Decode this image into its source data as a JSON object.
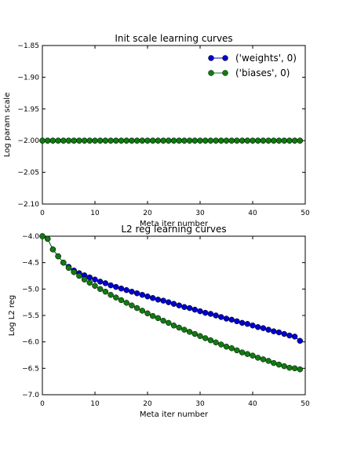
{
  "chart_data": [
    {
      "type": "line",
      "title": "Init scale learning curves",
      "xlabel": "Meta iter number",
      "ylabel": "Log param scale",
      "xlim": [
        0,
        50
      ],
      "ylim": [
        -2.1,
        -1.85
      ],
      "xticks": [
        "0",
        "10",
        "20",
        "30",
        "40",
        "50"
      ],
      "yticks": [
        "-1.85",
        "-1.90",
        "-1.95",
        "-2.00",
        "-2.05",
        "-2.10"
      ],
      "grid": false,
      "legend_position": "top-right",
      "x": [
        0,
        1,
        2,
        3,
        4,
        5,
        6,
        7,
        8,
        9,
        10,
        11,
        12,
        13,
        14,
        15,
        16,
        17,
        18,
        19,
        20,
        21,
        22,
        23,
        24,
        25,
        26,
        27,
        28,
        29,
        30,
        31,
        32,
        33,
        34,
        35,
        36,
        37,
        38,
        39,
        40,
        41,
        42,
        43,
        44,
        45,
        46,
        47,
        48,
        49
      ],
      "series": [
        {
          "name": "('weights', 0)",
          "color": "#0000cc",
          "values": [
            -2,
            -2,
            -2,
            -2,
            -2,
            -2,
            -2,
            -2,
            -2,
            -2,
            -2,
            -2,
            -2,
            -2,
            -2,
            -2,
            -2,
            -2,
            -2,
            -2,
            -2,
            -2,
            -2,
            -2,
            -2,
            -2,
            -2,
            -2,
            -2,
            -2,
            -2,
            -2,
            -2,
            -2,
            -2,
            -2,
            -2,
            -2,
            -2,
            -2,
            -2,
            -2,
            -2,
            -2,
            -2,
            -2,
            -2,
            -2,
            -2,
            -2
          ]
        },
        {
          "name": "('biases', 0)",
          "color": "#117a11",
          "values": [
            -2,
            -2,
            -2,
            -2,
            -2,
            -2,
            -2,
            -2,
            -2,
            -2,
            -2,
            -2,
            -2,
            -2,
            -2,
            -2,
            -2,
            -2,
            -2,
            -2,
            -2,
            -2,
            -2,
            -2,
            -2,
            -2,
            -2,
            -2,
            -2,
            -2,
            -2,
            -2,
            -2,
            -2,
            -2,
            -2,
            -2,
            -2,
            -2,
            -2,
            -2,
            -2,
            -2,
            -2,
            -2,
            -2,
            -2,
            -2,
            -2,
            -2
          ]
        }
      ]
    },
    {
      "type": "line",
      "title": "L2 reg learning curves",
      "xlabel": "Meta iter number",
      "ylabel": "Log L2 reg",
      "xlim": [
        0,
        50
      ],
      "ylim": [
        -7.0,
        -4.0
      ],
      "xticks": [
        "0",
        "10",
        "20",
        "30",
        "40",
        "50"
      ],
      "yticks": [
        "-4.0",
        "-4.5",
        "-5.0",
        "-5.5",
        "-6.0",
        "-6.5",
        "-7.0"
      ],
      "grid": false,
      "x": [
        0,
        1,
        2,
        3,
        4,
        5,
        6,
        7,
        8,
        9,
        10,
        11,
        12,
        13,
        14,
        15,
        16,
        17,
        18,
        19,
        20,
        21,
        22,
        23,
        24,
        25,
        26,
        27,
        28,
        29,
        30,
        31,
        32,
        33,
        34,
        35,
        36,
        37,
        38,
        39,
        40,
        41,
        42,
        43,
        44,
        45,
        46,
        47,
        48,
        49
      ],
      "series": [
        {
          "color": "#0000cc",
          "values": [
            -4.0,
            -4.05,
            -4.25,
            -4.38,
            -4.5,
            -4.58,
            -4.65,
            -4.7,
            -4.74,
            -4.78,
            -4.82,
            -4.86,
            -4.89,
            -4.93,
            -4.96,
            -4.99,
            -5.02,
            -5.05,
            -5.08,
            -5.11,
            -5.14,
            -5.17,
            -5.2,
            -5.22,
            -5.25,
            -5.28,
            -5.31,
            -5.34,
            -5.36,
            -5.39,
            -5.42,
            -5.45,
            -5.47,
            -5.5,
            -5.53,
            -5.56,
            -5.58,
            -5.61,
            -5.64,
            -5.66,
            -5.69,
            -5.72,
            -5.74,
            -5.77,
            -5.8,
            -5.82,
            -5.85,
            -5.88,
            -5.9,
            -5.98
          ]
        },
        {
          "color": "#117a11",
          "values": [
            -4.0,
            -4.05,
            -4.25,
            -4.38,
            -4.5,
            -4.6,
            -4.68,
            -4.75,
            -4.82,
            -4.88,
            -4.94,
            -5.0,
            -5.05,
            -5.11,
            -5.16,
            -5.21,
            -5.26,
            -5.31,
            -5.36,
            -5.41,
            -5.46,
            -5.51,
            -5.55,
            -5.6,
            -5.64,
            -5.69,
            -5.73,
            -5.77,
            -5.81,
            -5.85,
            -5.89,
            -5.93,
            -5.97,
            -6.01,
            -6.05,
            -6.09,
            -6.12,
            -6.16,
            -6.2,
            -6.23,
            -6.26,
            -6.3,
            -6.33,
            -6.36,
            -6.4,
            -6.43,
            -6.46,
            -6.49,
            -6.5,
            -6.52
          ]
        }
      ]
    }
  ]
}
